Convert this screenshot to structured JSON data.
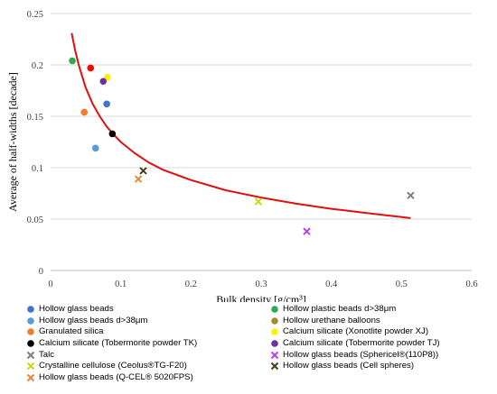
{
  "chart_data": {
    "type": "scatter",
    "xlabel": "Bulk density [g/cm³]",
    "ylabel": "Average of half-widths [decade]",
    "xlim": [
      0,
      0.6
    ],
    "ylim": [
      0,
      0.25
    ],
    "x_ticks": [
      "0",
      "0.1",
      "0.2",
      "0.3",
      "0.4",
      "0.5",
      "0.6"
    ],
    "y_ticks": [
      "0",
      "0.05",
      "0.1",
      "0.15",
      "0.2",
      "0.25"
    ],
    "grid": "horizontal",
    "legend_position": "bottom",
    "series": [
      {
        "name": "Hollow glass beads",
        "marker": "circle",
        "color": "#4472C4",
        "x": [
          0.08
        ],
        "y": [
          0.162
        ]
      },
      {
        "name": "Hollow plastic beads d>38μm",
        "marker": "circle",
        "color": "#2EAA4F",
        "x": [
          0.031
        ],
        "y": [
          0.204
        ]
      },
      {
        "name": "Hollow glass beads d>38μm",
        "marker": "circle",
        "color": "#5B9BD5",
        "x": [
          0.064
        ],
        "y": [
          0.119
        ]
      },
      {
        "name": "Hollow urethane balloons",
        "marker": "circle",
        "color": "#A58B2E",
        "x": [],
        "y": []
      },
      {
        "name": "Granulated silica",
        "marker": "circle",
        "color": "#ED7D31",
        "x": [
          0.048
        ],
        "y": [
          0.154
        ]
      },
      {
        "name": "Calcium silicate (Xonotlite powder XJ)",
        "marker": "circle",
        "color": "#FFF200",
        "x": [
          0.081
        ],
        "y": [
          0.188
        ]
      },
      {
        "name": "Calcium silicate (Tobermorite powder TK)",
        "marker": "circle",
        "color": "#000000",
        "x": [
          0.088
        ],
        "y": [
          0.133
        ]
      },
      {
        "name": "Calcium silicate (Tobermorite powder TJ)",
        "marker": "circle",
        "color": "#7030A0",
        "x": [
          0.075
        ],
        "y": [
          0.184
        ]
      },
      {
        "name": "Talc",
        "marker": "x",
        "color": "#7F7F7F",
        "x": [
          0.513
        ],
        "y": [
          0.073
        ]
      },
      {
        "name": "Hollow glass beads (Sphericel®(110P8))",
        "marker": "x",
        "color": "#B541E8",
        "x": [
          0.365
        ],
        "y": [
          0.038
        ]
      },
      {
        "name": "Crystalline cellulose (Ceolus®TG-F20)",
        "marker": "x",
        "color": "#C9D81C",
        "x": [
          0.296
        ],
        "y": [
          0.067
        ]
      },
      {
        "name": "Hollow glass beads (Cell spheres)",
        "marker": "x",
        "color": "#4E3B17",
        "x": [
          0.132
        ],
        "y": [
          0.097
        ]
      },
      {
        "name": "Hollow glass beads (Q-CEL® 5020FPS)",
        "marker": "x",
        "color": "#E08A3C",
        "x": [
          0.125
        ],
        "y": [
          0.089
        ]
      },
      {
        "name": "",
        "marker": "circle",
        "color": "#FF0000",
        "x": [
          0.057
        ],
        "y": [
          0.197
        ]
      }
    ],
    "trend_curve": {
      "color": "#E01010",
      "x": [
        0.03,
        0.035,
        0.04,
        0.05,
        0.06,
        0.07,
        0.08,
        0.09,
        0.1,
        0.12,
        0.14,
        0.16,
        0.18,
        0.2,
        0.25,
        0.3,
        0.35,
        0.4,
        0.45,
        0.513
      ],
      "y": [
        0.231,
        0.214,
        0.2,
        0.178,
        0.162,
        0.15,
        0.14,
        0.132,
        0.125,
        0.114,
        0.105,
        0.098,
        0.093,
        0.088,
        0.078,
        0.071,
        0.065,
        0.06,
        0.056,
        0.051
      ]
    }
  }
}
